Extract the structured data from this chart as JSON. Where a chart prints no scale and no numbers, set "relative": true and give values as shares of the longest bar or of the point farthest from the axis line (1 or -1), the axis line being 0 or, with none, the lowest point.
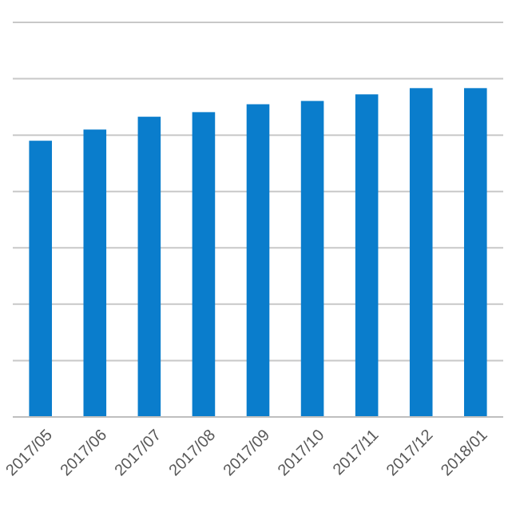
{
  "chart_data": {
    "type": "bar",
    "relative": true,
    "categories": [
      "2017/05",
      "2017/06",
      "2017/07",
      "2017/08",
      "2017/09",
      "2017/10",
      "2017/11",
      "2017/12",
      "2018/01"
    ],
    "values": [
      0.84,
      0.874,
      0.913,
      0.927,
      0.951,
      0.961,
      0.981,
      1,
      1
    ],
    "color": "#0a7dcc",
    "grid": "y"
  }
}
